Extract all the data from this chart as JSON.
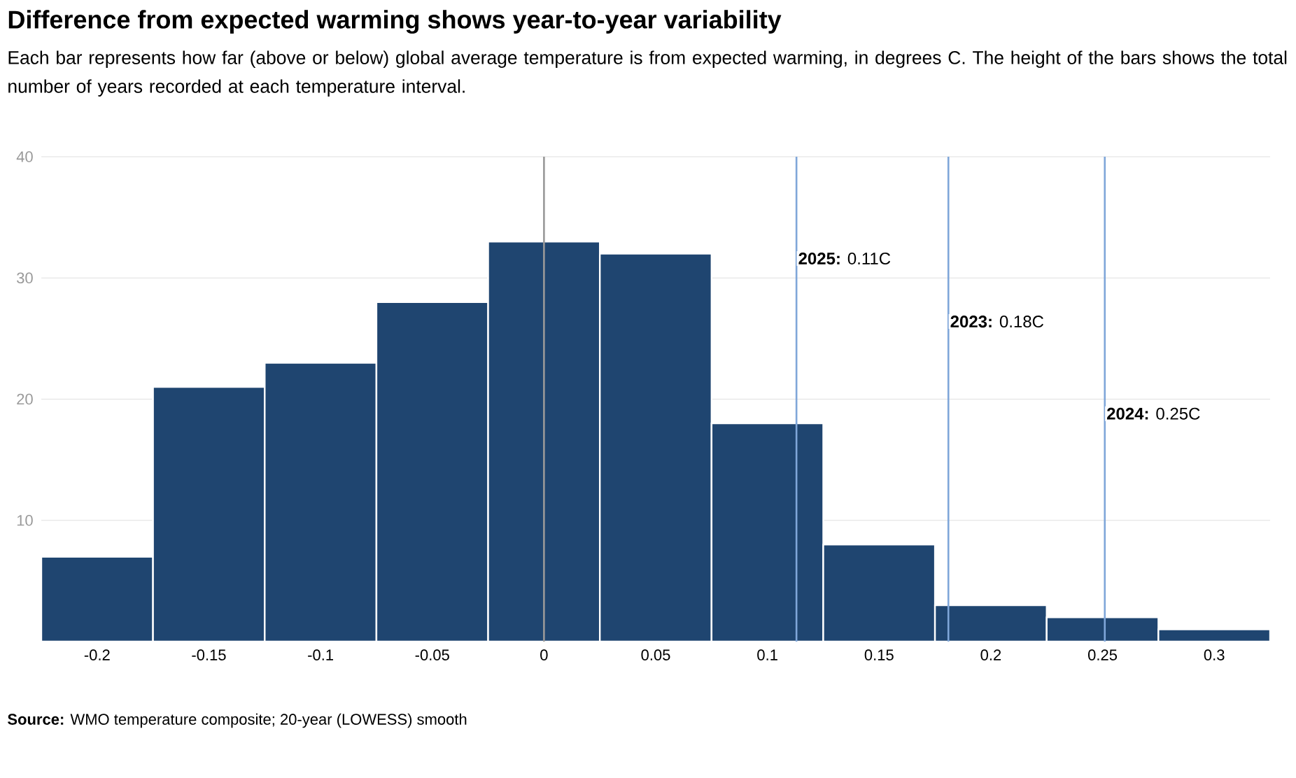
{
  "chart_data": {
    "type": "histogram",
    "title": "Difference from expected warming shows year-to-year variability",
    "subtitle": "Each bar represents how far (above or below) global average temperature is from expected warming, in degrees C. The height of the bars shows the total number of years recorded at each temperature interval.",
    "bins": [
      -0.225,
      -0.175,
      -0.125,
      -0.075,
      -0.025,
      0.025,
      0.075,
      0.125,
      0.175,
      0.225,
      0.275,
      0.325
    ],
    "values": [
      7,
      21,
      23,
      28,
      33,
      32,
      18,
      8,
      3,
      2,
      1
    ],
    "color": "#1f4570",
    "xlim": [
      -0.225,
      0.325
    ],
    "xticks": [
      -0.2,
      -0.15,
      -0.1,
      -0.05,
      0,
      0.05,
      0.1,
      0.15,
      0.2,
      0.25,
      0.3
    ],
    "ylim": [
      0,
      40
    ],
    "yticks": [
      10,
      20,
      30,
      40
    ],
    "grid": "y",
    "ref_lines": [
      {
        "axis": "x",
        "value": 0,
        "color": "#999999"
      },
      {
        "axis": "x",
        "value": 0.113,
        "label": "**2025:** 0.11C",
        "color": "#7fa6d9"
      },
      {
        "axis": "x",
        "value": 0.181,
        "label": "**2023:** 0.18C",
        "color": "#7fa6d9"
      },
      {
        "axis": "x",
        "value": 0.251,
        "label": "**2024:** 0.25C",
        "color": "#7fa6d9"
      }
    ],
    "annotations": [
      "**Source:** WMO temperature composite; 20-year (LOWESS) smooth"
    ]
  }
}
